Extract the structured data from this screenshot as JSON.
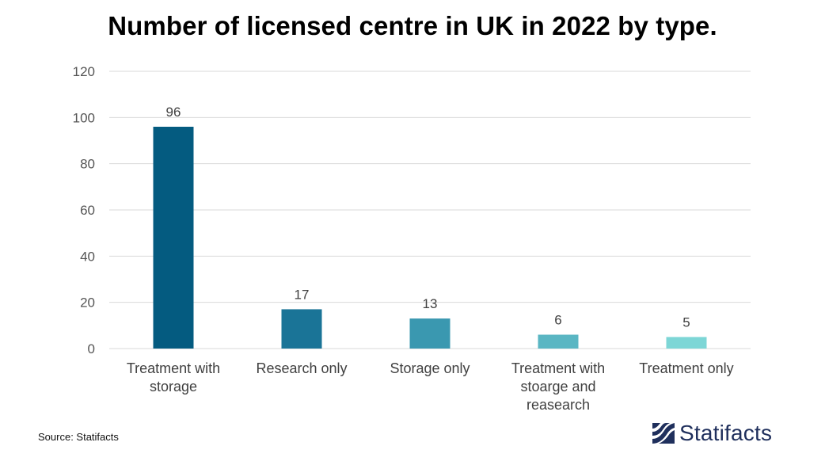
{
  "title": "Number of licensed centre in UK in 2022 by type.",
  "source": "Source: Statifacts",
  "brand": "Statifacts",
  "colors": {
    "grid": "#d9d9d9",
    "tick_text": "#555555",
    "label_text": "#404040",
    "brand": "#1f2f5c"
  },
  "chart_data": {
    "type": "bar",
    "categories": [
      [
        "Treatment with",
        "storage"
      ],
      [
        "Research only"
      ],
      [
        "Storage only"
      ],
      [
        "Treatment with",
        "stoarge and",
        "reasearch"
      ],
      [
        "Treatment only"
      ]
    ],
    "values": [
      96,
      17,
      13,
      6,
      5
    ],
    "bar_colors": [
      "#045b80",
      "#1a7497",
      "#3a98b0",
      "#5ab6c3",
      "#7dd6d6"
    ],
    "ylim": [
      0,
      120
    ],
    "yticks": [
      0,
      20,
      40,
      60,
      80,
      100,
      120
    ],
    "grid": true,
    "data_labels": true
  }
}
